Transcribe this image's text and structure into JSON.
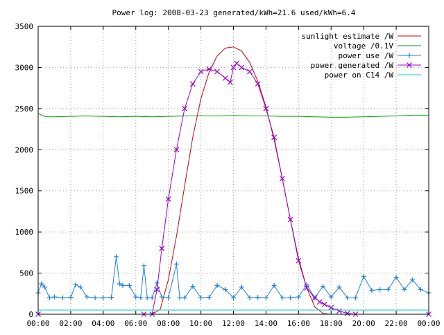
{
  "chart_data": {
    "type": "line",
    "title": "Power log: 2008-03-23 generated/kWh=21.6 used/kWh=6.4",
    "xlabel": "",
    "ylabel": "",
    "xlim": [
      0,
      24
    ],
    "ylim": [
      0,
      3500
    ],
    "grid": true,
    "legend_position": "top-right",
    "x_ticks": [
      "00:00",
      "02:00",
      "04:00",
      "06:00",
      "08:00",
      "10:00",
      "12:00",
      "14:00",
      "16:00",
      "18:00",
      "20:00",
      "22:00",
      "00:00"
    ],
    "y_ticks": [
      0,
      500,
      1000,
      1500,
      2000,
      2500,
      3000,
      3500
    ],
    "series": [
      {
        "name": "sunlight estimate /W",
        "color": "#cc0000",
        "x": [
          0,
          7.0,
          7.5,
          8.0,
          8.5,
          9.0,
          9.5,
          10.0,
          10.5,
          11.0,
          11.5,
          12.0,
          12.5,
          13.0,
          13.5,
          14.0,
          14.5,
          15.0,
          15.5,
          16.0,
          16.5,
          17.0,
          17.5,
          18.0,
          18.5,
          19.0,
          24
        ],
        "y": [
          0,
          0,
          60,
          420,
          950,
          1560,
          2150,
          2620,
          2940,
          3140,
          3235,
          3250,
          3200,
          3060,
          2830,
          2520,
          2120,
          1650,
          1150,
          680,
          320,
          90,
          10,
          0,
          0,
          0,
          0
        ]
      },
      {
        "name": "voltage /0.1V",
        "color": "#00a000",
        "x": [
          0,
          0.3,
          0.6,
          1,
          2,
          3,
          4,
          5,
          6,
          7,
          8,
          9,
          10,
          11,
          12,
          13,
          14,
          15,
          16,
          17,
          18,
          19,
          20,
          21,
          22,
          23,
          24
        ],
        "y": [
          2440,
          2410,
          2400,
          2400,
          2405,
          2410,
          2405,
          2400,
          2405,
          2400,
          2405,
          2410,
          2410,
          2410,
          2415,
          2410,
          2410,
          2405,
          2405,
          2400,
          2395,
          2395,
          2400,
          2405,
          2410,
          2420,
          2420
        ]
      },
      {
        "name": "power use /W",
        "color": "#2080e0",
        "marker": "plus",
        "x": [
          0,
          0.2,
          0.4,
          0.7,
          1.0,
          1.5,
          2.0,
          2.3,
          2.6,
          3.0,
          3.5,
          4.0,
          4.5,
          4.8,
          5.0,
          5.2,
          5.6,
          6.0,
          6.3,
          6.5,
          6.7,
          7.0,
          7.3,
          7.6,
          8.0,
          8.5,
          8.7,
          9.0,
          9.5,
          10.0,
          10.5,
          11.0,
          11.5,
          12.0,
          12.5,
          13.0,
          13.5,
          14.0,
          14.5,
          15.0,
          15.5,
          16.0,
          16.5,
          17.0,
          17.5,
          18.0,
          18.5,
          19.0,
          19.5,
          20.0,
          20.5,
          21.0,
          21.5,
          22.0,
          22.5,
          23.0,
          23.5,
          24
        ],
        "y": [
          260,
          370,
          330,
          200,
          210,
          200,
          205,
          360,
          330,
          210,
          200,
          200,
          205,
          700,
          370,
          350,
          350,
          210,
          200,
          590,
          200,
          200,
          380,
          210,
          200,
          610,
          200,
          200,
          340,
          200,
          205,
          350,
          300,
          200,
          330,
          200,
          205,
          200,
          350,
          200,
          200,
          210,
          360,
          200,
          340,
          210,
          330,
          200,
          200,
          460,
          290,
          300,
          300,
          450,
          300,
          420,
          300,
          260
        ]
      },
      {
        "name": "power generated /W",
        "color": "#9900cc",
        "marker": "x",
        "x": [
          0,
          6.5,
          7.0,
          7.3,
          7.6,
          8.0,
          8.5,
          9.0,
          9.5,
          10.0,
          10.5,
          11.0,
          11.5,
          11.8,
          12.0,
          12.2,
          12.5,
          13.0,
          13.5,
          14.0,
          14.5,
          15.0,
          15.5,
          16.0,
          16.5,
          17.0,
          17.3,
          17.6,
          18.0,
          18.5,
          19.0,
          19.5,
          24
        ],
        "y": [
          0,
          0,
          0,
          300,
          800,
          1400,
          2000,
          2500,
          2800,
          2950,
          2980,
          2950,
          2870,
          2820,
          3000,
          3050,
          3000,
          2950,
          2800,
          2500,
          2150,
          1650,
          1150,
          650,
          320,
          200,
          150,
          120,
          80,
          40,
          10,
          0,
          0
        ]
      },
      {
        "name": "power on C14 /W",
        "color": "#00cccc",
        "x": [
          0,
          6,
          12,
          18,
          24
        ],
        "y": [
          50,
          50,
          50,
          50,
          50
        ]
      }
    ]
  }
}
